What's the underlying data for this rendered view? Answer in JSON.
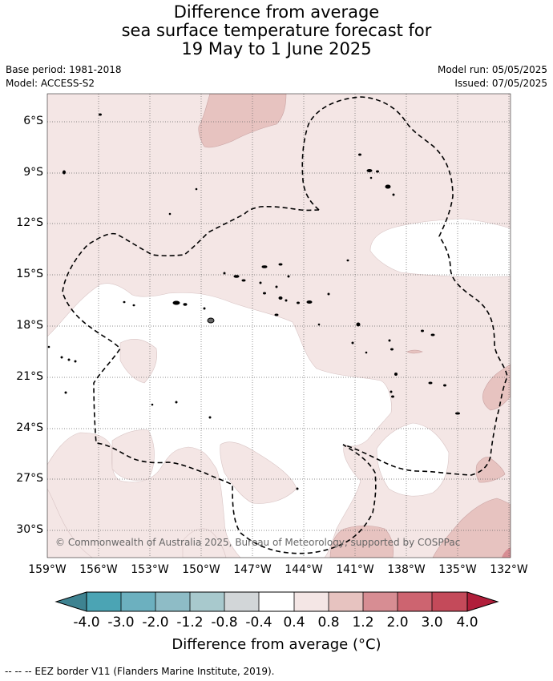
{
  "title": {
    "line1": "Difference from average",
    "line2": "sea surface temperature forecast for",
    "line3": "19 May to 1 June 2025"
  },
  "meta": {
    "base_period": "Base period: 1981-2018",
    "model": "Model: ACCESS-S2",
    "model_run": "Model run: 05/05/2025",
    "issued": "Issued: 07/05/2025"
  },
  "map": {
    "copyright": "© Commonwealth of Australia 2025, Bureau of Meteorology, supported by COSPPac",
    "lat_ticks": [
      "6°S",
      "9°S",
      "12°S",
      "15°S",
      "18°S",
      "21°S",
      "24°S",
      "27°S",
      "30°S"
    ],
    "lon_ticks": [
      "159°W",
      "156°W",
      "153°W",
      "150°W",
      "147°W",
      "144°W",
      "141°W",
      "138°W",
      "135°W",
      "132°W"
    ],
    "extent": {
      "lon": [
        -159,
        -132
      ],
      "lat": [
        -31.7,
        -4.7
      ]
    }
  },
  "colorbar": {
    "labels": [
      "-4.0",
      "-3.0",
      "-2.0",
      "-1.2",
      "-0.8",
      "-0.4",
      "0.4",
      "0.8",
      "1.2",
      "2.0",
      "3.0",
      "4.0"
    ],
    "colors": [
      "#3e8391",
      "#4ba4b4",
      "#6cb0bf",
      "#8ebcc6",
      "#a8c9cd",
      "#d2d6d8",
      "#ffffff",
      "#f4e6e5",
      "#e7c3c0",
      "#d78d93",
      "#cd6470",
      "#c44a5a",
      "#b01e3a"
    ],
    "title": "Difference from average (°C)"
  },
  "footer": "--  --  -- EEZ border V11 (Flanders Marine Institute, 2019)."
}
